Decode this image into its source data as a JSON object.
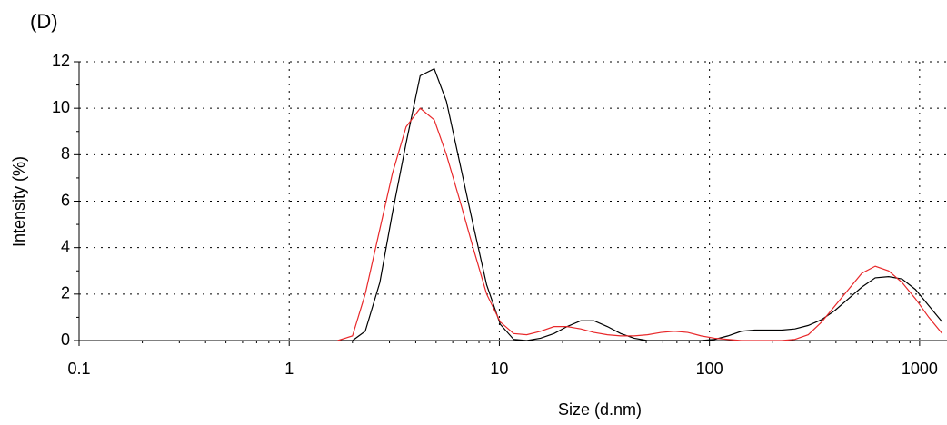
{
  "chart_data": {
    "type": "line",
    "title": "(D)",
    "xlabel": "Size (d.nm)",
    "ylabel": "Intensity (%)",
    "xscale": "log",
    "xlim": [
      0.1,
      1350
    ],
    "xticks": [
      0.1,
      1,
      10,
      100,
      1000
    ],
    "ylim": [
      0,
      12
    ],
    "yticks": [
      0,
      2,
      4,
      6,
      8,
      10,
      12
    ],
    "grid": true,
    "x": [
      1.7,
      2.0,
      2.3,
      2.7,
      3.1,
      3.6,
      4.2,
      4.9,
      5.6,
      6.5,
      7.5,
      8.7,
      10.1,
      11.7,
      13.5,
      15.7,
      18.2,
      21,
      24.4,
      28.2,
      32.7,
      37.8,
      43.8,
      50.7,
      58.8,
      68.1,
      78.8,
      91.3,
      105.7,
      122.4,
      141.8,
      164.2,
      190.1,
      220.2,
      255,
      295.3,
      342,
      396.1,
      458.7,
      531.2,
      615.1,
      712.4,
      825,
      955.4,
      1106,
      1281
    ],
    "series": [
      {
        "color": "#000000",
        "values": [
          0,
          0,
          0.4,
          2.5,
          5.5,
          8.5,
          11.4,
          11.7,
          10.3,
          7.6,
          5.0,
          2.4,
          0.7,
          0.05,
          0,
          0.1,
          0.3,
          0.6,
          0.85,
          0.85,
          0.6,
          0.3,
          0.1,
          0,
          0,
          0,
          0,
          0,
          0.05,
          0.2,
          0.4,
          0.45,
          0.45,
          0.45,
          0.5,
          0.65,
          0.9,
          1.3,
          1.8,
          2.3,
          2.7,
          2.75,
          2.65,
          2.2,
          1.5,
          0.8
        ]
      },
      {
        "color": "#e8282a",
        "values": [
          0,
          0.2,
          2.0,
          4.8,
          7.2,
          9.2,
          10.0,
          9.5,
          8.0,
          6.0,
          4.0,
          2.0,
          0.8,
          0.3,
          0.25,
          0.4,
          0.6,
          0.6,
          0.5,
          0.35,
          0.25,
          0.2,
          0.2,
          0.25,
          0.35,
          0.4,
          0.35,
          0.2,
          0.1,
          0.05,
          0,
          0,
          0,
          0,
          0.05,
          0.25,
          0.8,
          1.5,
          2.2,
          2.9,
          3.2,
          3.0,
          2.5,
          1.8,
          1.0,
          0.3
        ]
      }
    ]
  }
}
